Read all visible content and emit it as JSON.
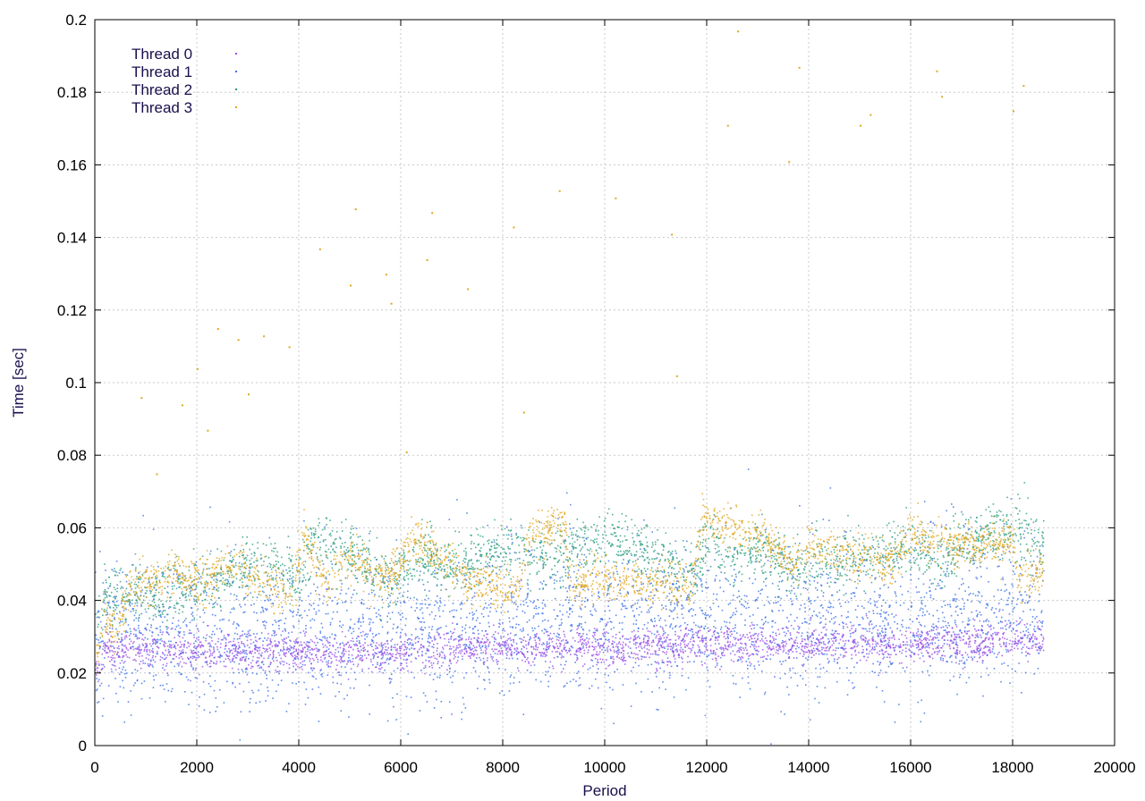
{
  "chart_data": {
    "type": "scatter",
    "title": "",
    "xlabel": "Period",
    "ylabel": "Time [sec]",
    "xlim": [
      0,
      20000
    ],
    "ylim": [
      0,
      0.2
    ],
    "xticks": [
      "0",
      "2000",
      "4000",
      "6000",
      "8000",
      "10000",
      "12000",
      "14000",
      "16000",
      "18000",
      "20000"
    ],
    "yticks": [
      "0",
      "0.02",
      "0.04",
      "0.06",
      "0.08",
      "0.1",
      "0.12",
      "0.14",
      "0.16",
      "0.18",
      "0.2"
    ],
    "grid": true,
    "legend_position": "top-left",
    "x_range_of_data": [
      0,
      18600
    ],
    "series": [
      {
        "name": "Thread 0",
        "color": "#9b4fe6",
        "trend": [
          [
            0,
            0.02
          ],
          [
            200,
            0.027
          ],
          [
            2000,
            0.026
          ],
          [
            4000,
            0.026
          ],
          [
            6000,
            0.026
          ],
          [
            8000,
            0.027
          ],
          [
            10000,
            0.027
          ],
          [
            12000,
            0.028
          ],
          [
            14000,
            0.028
          ],
          [
            16000,
            0.028
          ],
          [
            18000,
            0.029
          ],
          [
            18600,
            0.029
          ]
        ],
        "spread": 0.0025
      },
      {
        "name": "Thread 1",
        "color": "#3a6fe8",
        "trend": [
          [
            0,
            0.02
          ],
          [
            200,
            0.03
          ],
          [
            2000,
            0.028
          ],
          [
            4000,
            0.029
          ],
          [
            6000,
            0.03
          ],
          [
            8000,
            0.031
          ],
          [
            10000,
            0.032
          ],
          [
            12000,
            0.033
          ],
          [
            14000,
            0.033
          ],
          [
            16000,
            0.034
          ],
          [
            18000,
            0.034
          ],
          [
            18600,
            0.034
          ]
        ],
        "spread": 0.009
      },
      {
        "name": "Thread 2",
        "color": "#2a9d7f",
        "trend": [
          [
            0,
            0.035
          ],
          [
            300,
            0.042
          ],
          [
            1000,
            0.04
          ],
          [
            2000,
            0.044
          ],
          [
            3000,
            0.05
          ],
          [
            4000,
            0.047
          ],
          [
            4300,
            0.058
          ],
          [
            5000,
            0.052
          ],
          [
            5800,
            0.045
          ],
          [
            6500,
            0.052
          ],
          [
            7000,
            0.05
          ],
          [
            7500,
            0.052
          ],
          [
            8000,
            0.055
          ],
          [
            9000,
            0.052
          ],
          [
            10000,
            0.057
          ],
          [
            11000,
            0.052
          ],
          [
            11800,
            0.048
          ],
          [
            12000,
            0.058
          ],
          [
            12500,
            0.05
          ],
          [
            13000,
            0.055
          ],
          [
            13700,
            0.048
          ],
          [
            14000,
            0.05
          ],
          [
            15000,
            0.053
          ],
          [
            16000,
            0.055
          ],
          [
            16500,
            0.05
          ],
          [
            17000,
            0.056
          ],
          [
            18000,
            0.06
          ],
          [
            18600,
            0.055
          ]
        ],
        "spread": 0.004
      },
      {
        "name": "Thread 3",
        "color": "#e0a81f",
        "trend": [
          [
            0,
            0.022
          ],
          [
            150,
            0.035
          ],
          [
            400,
            0.03
          ],
          [
            700,
            0.045
          ],
          [
            1000,
            0.045
          ],
          [
            1500,
            0.048
          ],
          [
            2000,
            0.045
          ],
          [
            2800,
            0.05
          ],
          [
            3400,
            0.045
          ],
          [
            3800,
            0.04
          ],
          [
            4100,
            0.058
          ],
          [
            4500,
            0.045
          ],
          [
            5000,
            0.052
          ],
          [
            5700,
            0.045
          ],
          [
            6200,
            0.057
          ],
          [
            6800,
            0.052
          ],
          [
            7300,
            0.045
          ],
          [
            8300,
            0.044
          ],
          [
            8500,
            0.058
          ],
          [
            9200,
            0.062
          ],
          [
            9300,
            0.046
          ],
          [
            10300,
            0.045
          ],
          [
            11700,
            0.044
          ],
          [
            11900,
            0.064
          ],
          [
            12300,
            0.06
          ],
          [
            13000,
            0.058
          ],
          [
            13700,
            0.05
          ],
          [
            14000,
            0.055
          ],
          [
            15000,
            0.052
          ],
          [
            15600,
            0.05
          ],
          [
            16000,
            0.058
          ],
          [
            16500,
            0.056
          ],
          [
            17000,
            0.055
          ],
          [
            18000,
            0.057
          ],
          [
            18100,
            0.045
          ],
          [
            18600,
            0.048
          ]
        ],
        "spread": 0.003
      }
    ],
    "outliers": [
      [
        1200,
        0.075
      ],
      [
        1700,
        0.094
      ],
      [
        2000,
        0.104
      ],
      [
        2400,
        0.115
      ],
      [
        2800,
        0.112
      ],
      [
        3000,
        0.097
      ],
      [
        3300,
        0.113
      ],
      [
        3800,
        0.11
      ],
      [
        4400,
        0.137
      ],
      [
        5000,
        0.127
      ],
      [
        5100,
        0.148
      ],
      [
        5700,
        0.13
      ],
      [
        5800,
        0.122
      ],
      [
        6500,
        0.134
      ],
      [
        6600,
        0.147
      ],
      [
        7300,
        0.126
      ],
      [
        8200,
        0.143
      ],
      [
        8400,
        0.092
      ],
      [
        9100,
        0.153
      ],
      [
        10200,
        0.151
      ],
      [
        11300,
        0.141
      ],
      [
        11400,
        0.102
      ],
      [
        12400,
        0.171
      ],
      [
        12600,
        0.197
      ],
      [
        13600,
        0.161
      ],
      [
        13800,
        0.187
      ],
      [
        15000,
        0.171
      ],
      [
        15200,
        0.174
      ],
      [
        16500,
        0.186
      ],
      [
        16600,
        0.179
      ],
      [
        18000,
        0.175
      ],
      [
        18200,
        0.182
      ],
      [
        900,
        0.096
      ],
      [
        2200,
        0.087
      ],
      [
        6100,
        0.081
      ]
    ]
  }
}
